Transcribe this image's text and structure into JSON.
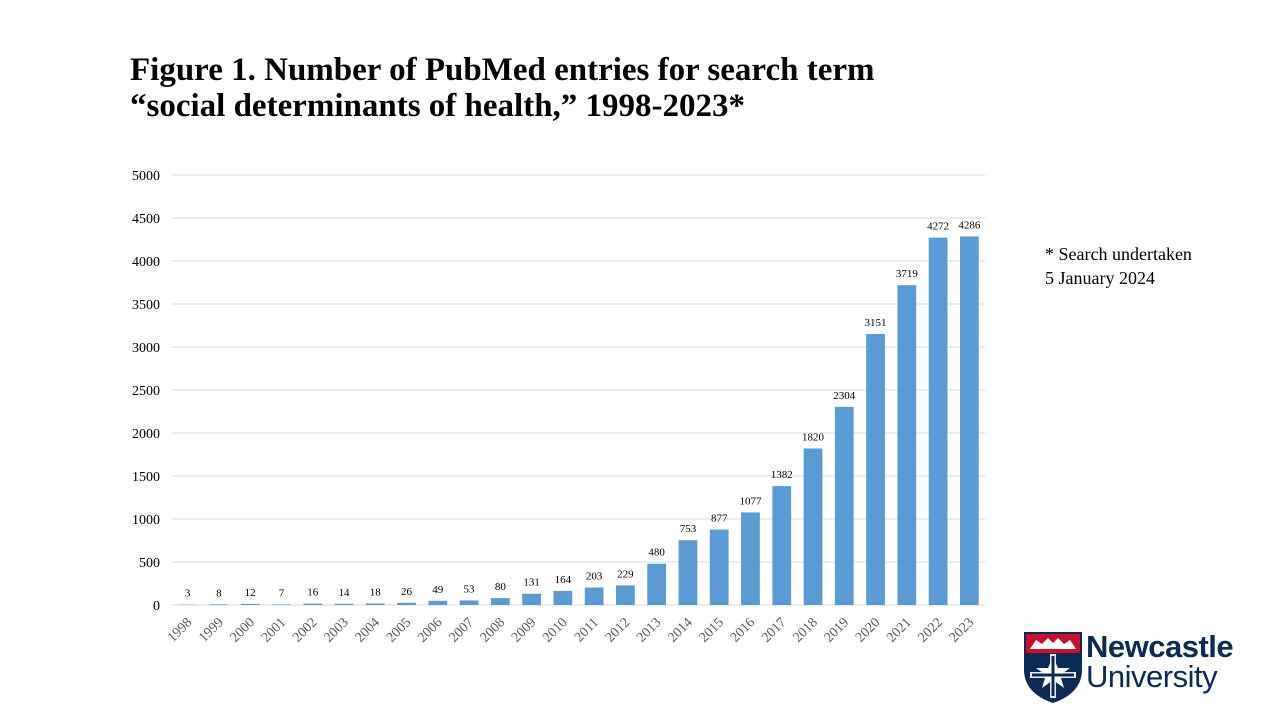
{
  "title": {
    "line1": "Figure 1. Number of PubMed entries for search term",
    "line2": "“social determinants of health,” 1998-2023*"
  },
  "note": {
    "line1": "* Search undertaken",
    "line2": "5 January 2024"
  },
  "logo": {
    "line1": "Newcastle",
    "line2": "University"
  },
  "colors": {
    "bar": "#5b9bd5",
    "grid": "#d9d9d9",
    "axis_text": "#595959",
    "logo_navy": "#0b2a55",
    "logo_red": "#c8102e"
  },
  "chart_data": {
    "type": "bar",
    "categories": [
      "1998",
      "1999",
      "2000",
      "2001",
      "2002",
      "2003",
      "2004",
      "2005",
      "2006",
      "2007",
      "2008",
      "2009",
      "2010",
      "2011",
      "2012",
      "2013",
      "2014",
      "2015",
      "2016",
      "2017",
      "2018",
      "2019",
      "2020",
      "2021",
      "2022",
      "2023"
    ],
    "values": [
      3,
      8,
      12,
      7,
      16,
      14,
      18,
      26,
      49,
      53,
      80,
      131,
      164,
      203,
      229,
      480,
      753,
      877,
      1077,
      1382,
      1820,
      2304,
      3151,
      3719,
      4272,
      4286
    ],
    "ylim": [
      0,
      5000
    ],
    "yticks": [
      0,
      500,
      1000,
      1500,
      2000,
      2500,
      3000,
      3500,
      4000,
      4500,
      5000
    ],
    "grid": true,
    "data_labels": true,
    "xtick_rotation_deg": -45
  }
}
